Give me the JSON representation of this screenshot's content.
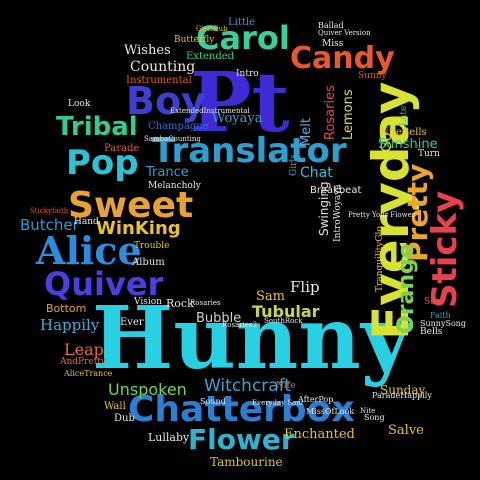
{
  "background_color": "#000000",
  "words": [
    {
      "text": "Hunny",
      "color": "#27d1e3"
    },
    {
      "text": "Pt",
      "color": "#3e2bd6"
    },
    {
      "text": "Everyday",
      "color": "#d7e231"
    },
    {
      "text": "Chatterbox",
      "color": "#2a7fd4"
    },
    {
      "text": "Translator",
      "color": "#2a9fd0"
    },
    {
      "text": "Boy",
      "color": "#3c3fd1"
    },
    {
      "text": "Carol",
      "color": "#35d09b"
    },
    {
      "text": "Sweet",
      "color": "#e9a12f"
    },
    {
      "text": "Alice",
      "color": "#2b8de0"
    },
    {
      "text": "Quiver",
      "color": "#4d3ee4"
    },
    {
      "text": "Pop",
      "color": "#29c3d6"
    },
    {
      "text": "Candy",
      "color": "#e9572b"
    },
    {
      "text": "Sticky",
      "color": "#e7404f"
    },
    {
      "text": "Pretty",
      "color": "#e9a52c"
    },
    {
      "text": "Tribal",
      "color": "#2fce8d"
    },
    {
      "text": "Flower",
      "color": "#2fb3d2"
    },
    {
      "text": "Orange",
      "color": "#7bd44c"
    },
    {
      "text": "WinKing",
      "color": "#e9c12a"
    },
    {
      "text": "Witchcraft",
      "color": "#3aa3cf"
    },
    {
      "text": "Tubular",
      "color": "#cbd83c"
    },
    {
      "text": "Unspoken",
      "color": "#73d54c"
    },
    {
      "text": "Butcher",
      "color": "#2a9ad3"
    },
    {
      "text": "Happily",
      "color": "#3ab0d8"
    },
    {
      "text": "Leap",
      "color": "#e96a2c"
    },
    {
      "text": "Counting",
      "color": "#e9e8e2"
    },
    {
      "text": "Woyaya",
      "color": "#3c9ec8"
    },
    {
      "text": "Trance",
      "color": "#2e9fd0"
    },
    {
      "text": "Bubble",
      "color": "#cfcfcf"
    },
    {
      "text": "Sam",
      "color": "#e9c02a"
    },
    {
      "text": "Flip",
      "color": "#e8e9e3"
    },
    {
      "text": "Chat",
      "color": "#2fc4d8"
    },
    {
      "text": "Melt",
      "color": "#5bb0dd"
    },
    {
      "text": "Go",
      "color": "#d6e02f"
    },
    {
      "text": "Lemons",
      "color": "#dcdc35"
    },
    {
      "text": "Rosaries",
      "color": "#e34c35"
    },
    {
      "text": "Swinging",
      "color": "#e4e4e4"
    },
    {
      "text": "Sunshine",
      "color": "#2fce8d"
    },
    {
      "text": "Enchanted",
      "color": "#e9c02a"
    },
    {
      "text": "Tambourine",
      "color": "#d8c237"
    },
    {
      "text": "Lullaby",
      "color": "#e9e8e2"
    },
    {
      "text": "Salve",
      "color": "#e9c12a"
    },
    {
      "text": "Sunday",
      "color": "#e9c02a"
    },
    {
      "text": "Wishes",
      "color": "#e9e8e2"
    },
    {
      "text": "Instrumental",
      "color": "#e9572b"
    },
    {
      "text": "Champagne",
      "color": "#2b6fd8"
    },
    {
      "text": "Parade",
      "color": "#e9572b"
    },
    {
      "text": "Melancholy",
      "color": "#e9e8e2"
    },
    {
      "text": "Trouble",
      "color": "#e9c02a"
    },
    {
      "text": "Album",
      "color": "#e9e8e2"
    },
    {
      "text": "Rock",
      "color": "#e9e8e2"
    },
    {
      "text": "Bottom",
      "color": "#e9a52c"
    },
    {
      "text": "Vision",
      "color": "#e9e8e2"
    },
    {
      "text": "Ever",
      "color": "#e9e8e2"
    },
    {
      "text": "Nite",
      "color": "#e9572b"
    },
    {
      "text": "Wall",
      "color": "#e9c02a"
    },
    {
      "text": "Dub",
      "color": "#e9e8e2"
    },
    {
      "text": "Intro",
      "color": "#e9e8e2"
    },
    {
      "text": "Extended",
      "color": "#2fce8d"
    },
    {
      "text": "Little",
      "color": "#2a9fd0"
    },
    {
      "text": "Butterfly",
      "color": "#e9c02a"
    },
    {
      "text": "Miss",
      "color": "#e9e8e2"
    },
    {
      "text": "Sunny",
      "color": "#e9572b"
    },
    {
      "text": "Late",
      "color": "#2fce8d"
    },
    {
      "text": "NiteBells",
      "color": "#e9c12a"
    },
    {
      "text": "Turn",
      "color": "#e9e8e2"
    },
    {
      "text": "Breakbeat",
      "color": "#e9e8e2"
    },
    {
      "text": "Girls",
      "color": "#3ab0d8"
    },
    {
      "text": "Look",
      "color": "#e9e8e2"
    },
    {
      "text": "Hand",
      "color": "#e9e8e2"
    },
    {
      "text": "Bells",
      "color": "#e9e8e2"
    },
    {
      "text": "Sea",
      "color": "#e9572b"
    },
    {
      "text": "Faith",
      "color": "#2a9fd0"
    },
    {
      "text": "Song",
      "color": "#e9e8e2"
    },
    {
      "text": "Sound",
      "color": "#e9e8e2"
    },
    {
      "text": "Ballad",
      "color": "#e9e8e2"
    },
    {
      "text": "Quiver Version",
      "color": "#e9e8e2"
    },
    {
      "text": "GirlsDub",
      "color": "#e9c02a"
    },
    {
      "text": "Stickyfaith",
      "color": "#e9572b"
    },
    {
      "text": "AfterPop",
      "color": "#e9e8e2"
    },
    {
      "text": "MissOfLook",
      "color": "#e9e8e2"
    },
    {
      "text": "AndPretty",
      "color": "#e96a2c"
    },
    {
      "text": "AliceTrance",
      "color": "#e9c02a"
    },
    {
      "text": "SunnySong",
      "color": "#e9e8e2"
    },
    {
      "text": "TranquilityGlo",
      "color": "#e9c02a"
    },
    {
      "text": "IntroWoyaya",
      "color": "#e9e8e2"
    },
    {
      "text": "Everyday Soul",
      "color": "#e9e8e2"
    },
    {
      "text": "Rosaries2",
      "color": "#e9e8e2"
    },
    {
      "text": "SouthRock",
      "color": "#e9e8e2"
    },
    {
      "text": "ParadeHappily",
      "color": "#e9e8e2"
    },
    {
      "text": "Nite",
      "color": "#e9e8e2"
    },
    {
      "text": "ExtendedInstrumental",
      "color": "#e9e8e2"
    },
    {
      "text": "Pretty Your Flower",
      "color": "#e9e8e2"
    },
    {
      "text": "SambaCounting",
      "color": "#e9e8e2"
    },
    {
      "text": "Rosaries",
      "color": "#e9e8e2"
    }
  ]
}
